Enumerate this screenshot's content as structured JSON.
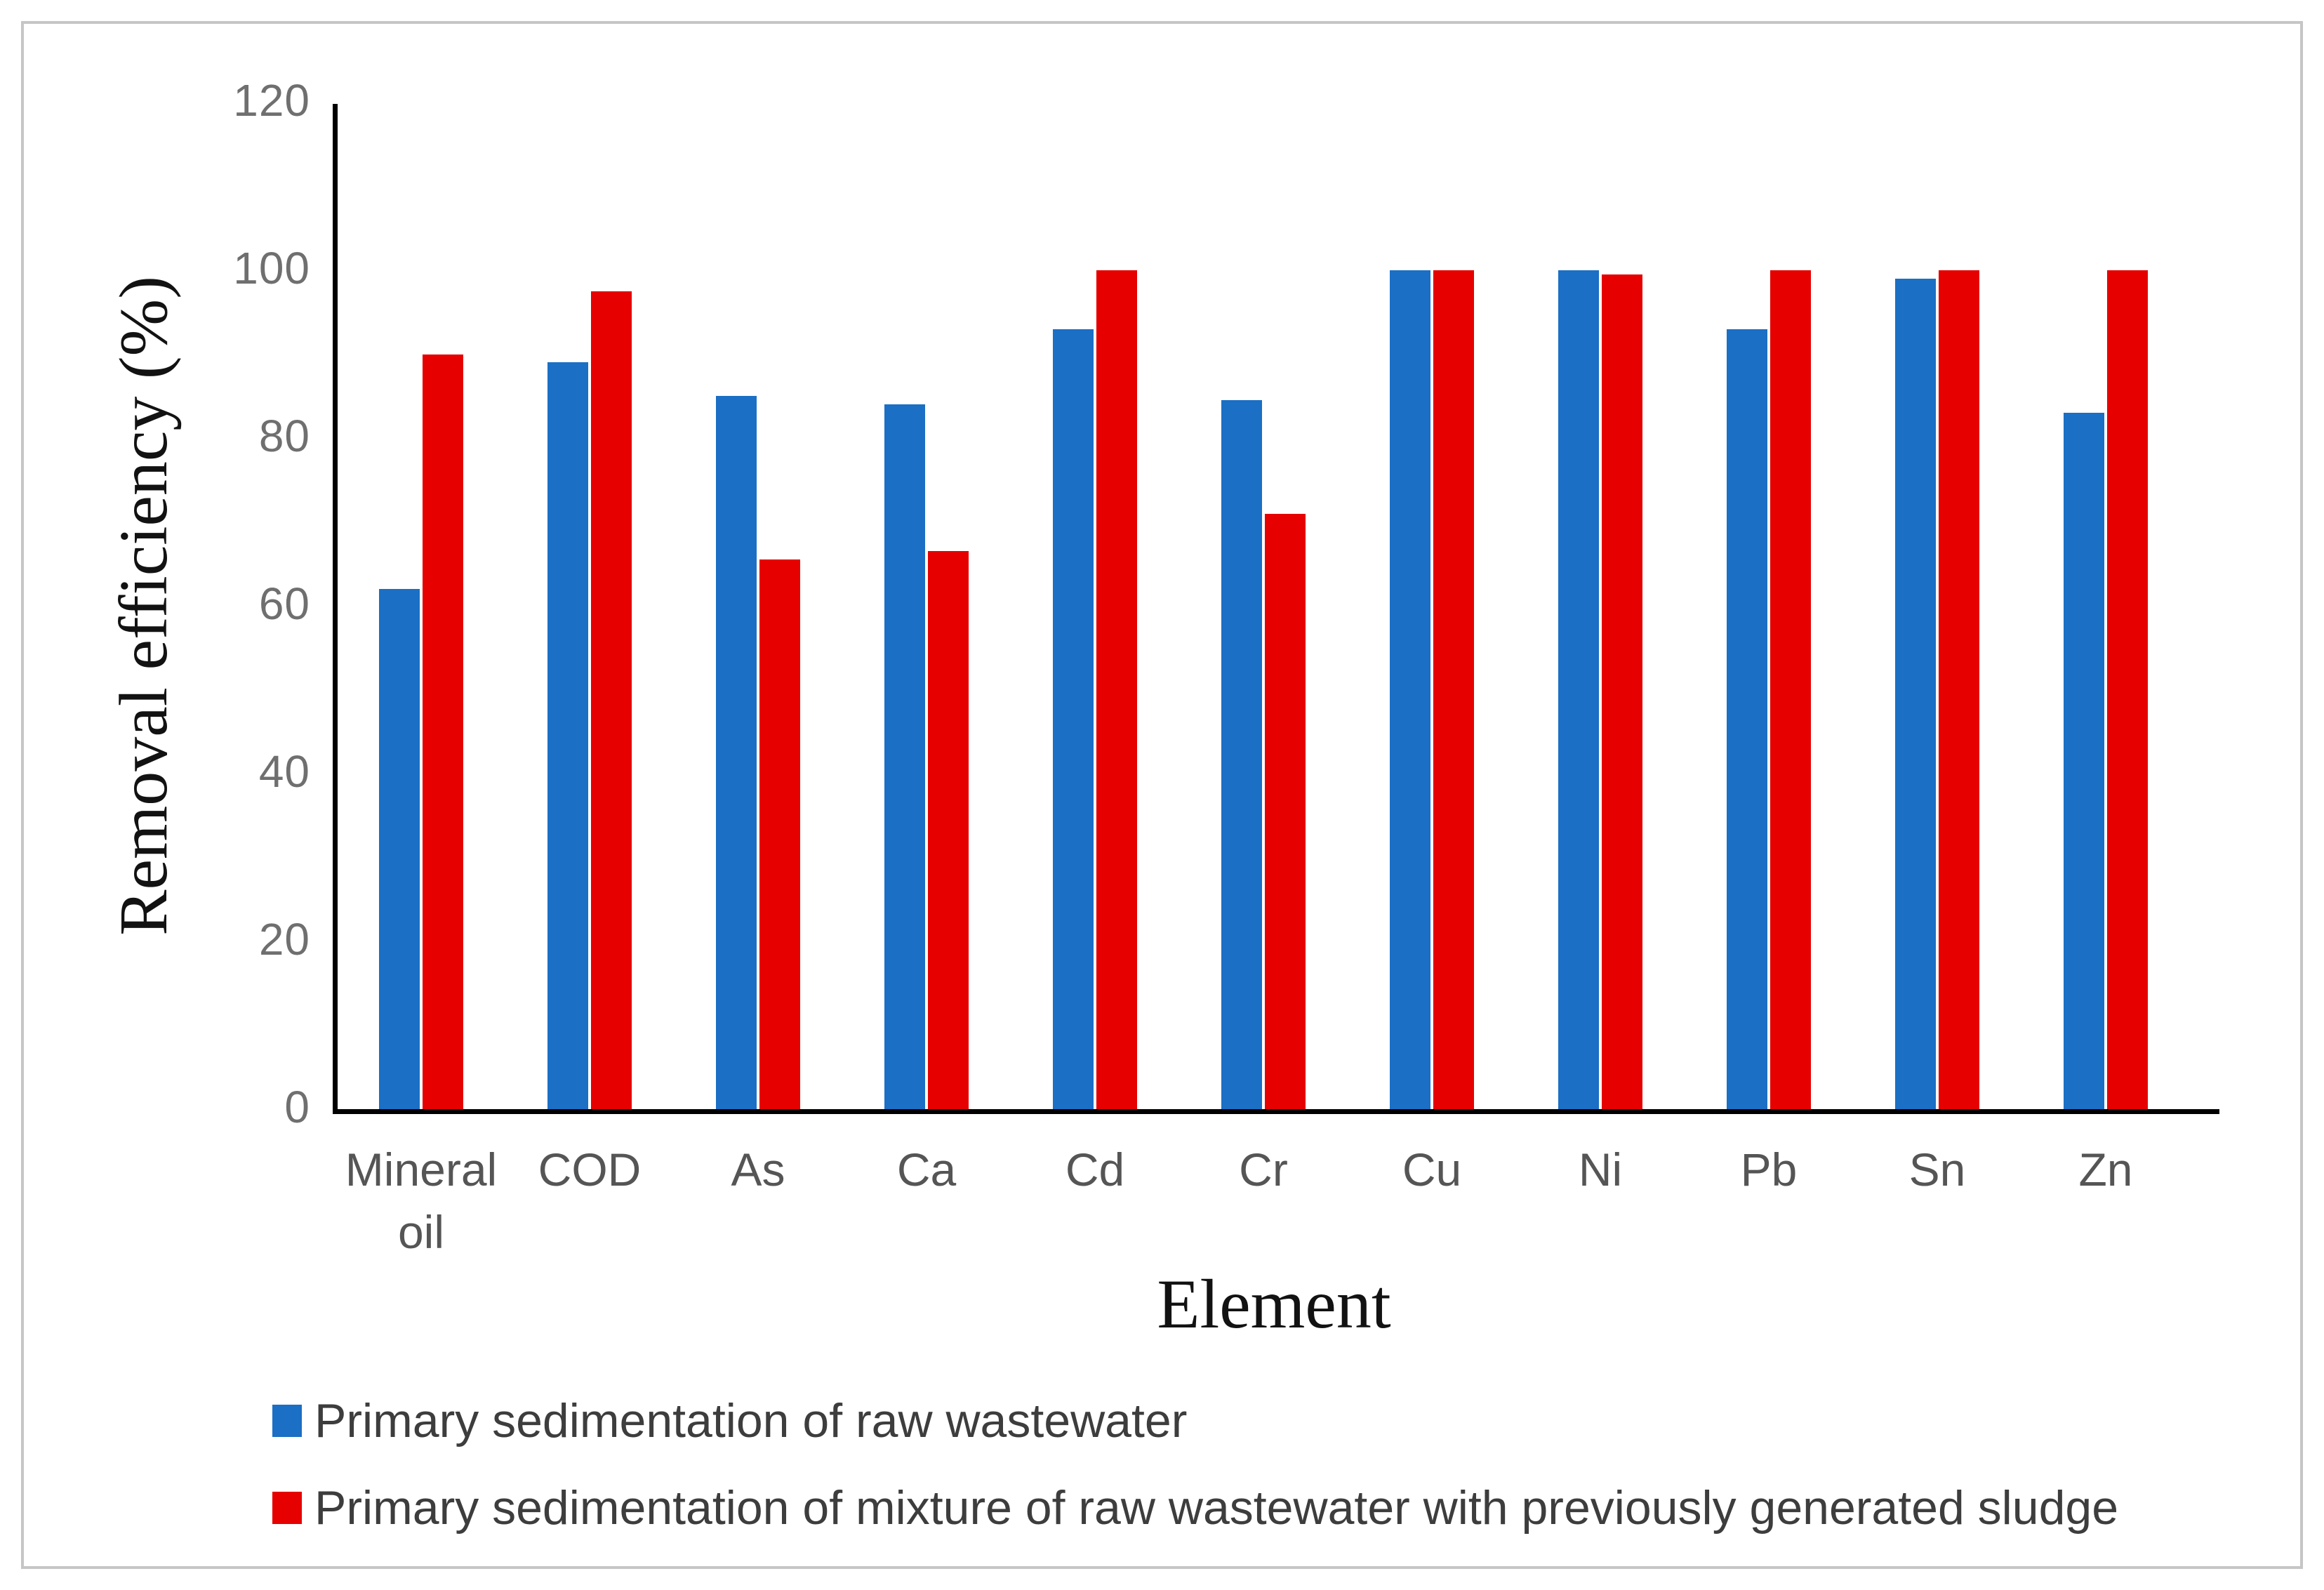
{
  "chart_data": {
    "type": "bar",
    "title": "",
    "xlabel": "Element",
    "ylabel": "Removal efficiency (%)",
    "categories": [
      "Mineral oil",
      "COD",
      "As",
      "Ca",
      "Cd",
      "Cr",
      "Cu",
      "Ni",
      "Pb",
      "Sn",
      "Zn"
    ],
    "series": [
      {
        "name": "Primary sedimentation of raw wastewater",
        "color": "#1B6FC4",
        "values": [
          62,
          89,
          85,
          84,
          93,
          84.5,
          100,
          100,
          93,
          99,
          83
        ]
      },
      {
        "name": "Primary sedimentation of mixture of raw wastewater with previously generated sludge",
        "color": "#E60000",
        "values": [
          90,
          97.5,
          65.5,
          66.5,
          100,
          71,
          100,
          99.5,
          100,
          100,
          100
        ]
      }
    ],
    "ylim": [
      0,
      120
    ],
    "yticks": [
      0,
      20,
      40,
      60,
      80,
      100,
      120
    ],
    "grid": false,
    "legend_position": "bottom-left",
    "axis_color": "#000000",
    "tick_label_color": "#6f6f6f"
  }
}
